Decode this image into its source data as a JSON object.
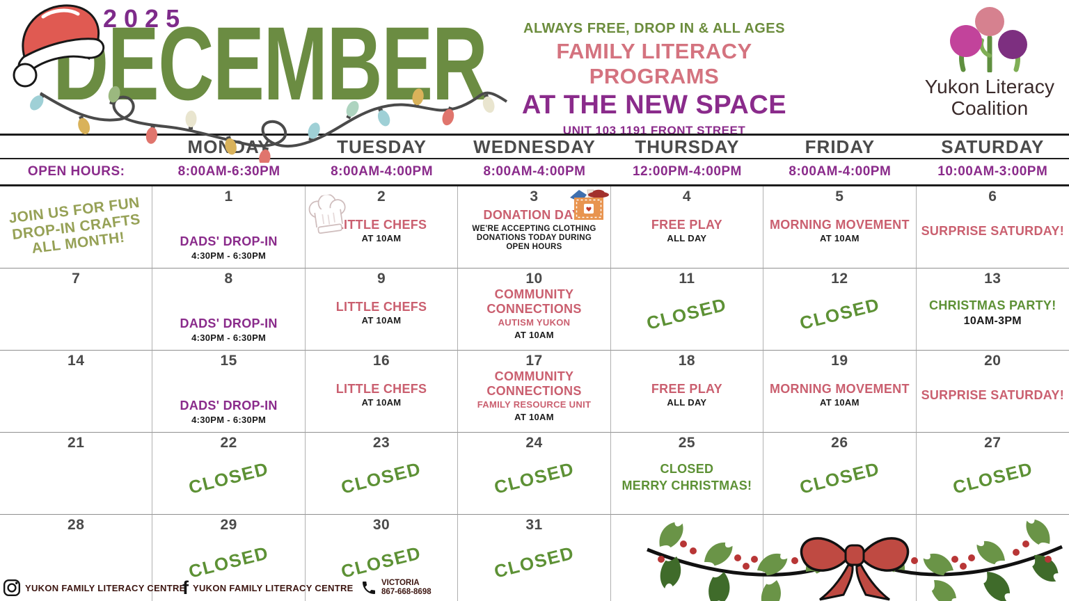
{
  "header": {
    "year": "2025",
    "month": "DECEMBER",
    "tagline": "ALWAYS FREE, DROP IN & ALL AGES",
    "program_title": "FAMILY LITERACY PROGRAMS",
    "venue": "AT THE NEW SPACE",
    "address": "UNIT 103 1191 FRONT STREET",
    "logo": {
      "line1": "Yukon Literacy",
      "line2": "Coalition"
    }
  },
  "calendar": {
    "day_headers": [
      "MONDAY",
      "TUESDAY",
      "WEDNESDAY",
      "THURSDAY",
      "FRIDAY",
      "SATURDAY"
    ],
    "open_hours_label": "OPEN HOURS:",
    "open_hours": [
      "8:00AM-6:30PM",
      "8:00AM-4:00PM",
      "8:00AM-4:00PM",
      "12:00PM-4:00PM",
      "8:00AM-4:00PM",
      "10:00AM-3:00PM"
    ],
    "closed_label": "CLOSED",
    "note_lines": [
      "JOIN US FOR FUN",
      "DROP-IN CRAFTS",
      "ALL MONTH!"
    ],
    "weeks": [
      [
        {
          "special": "note"
        },
        {
          "date": "1",
          "valign": "bottom",
          "events": [
            {
              "text": "DADS' DROP-IN",
              "color": "purple",
              "size": "lg"
            },
            {
              "text": "4:30PM - 6:30PM",
              "color": "black",
              "size": "sm"
            }
          ]
        },
        {
          "date": "2",
          "icon": "chef-hat-icon",
          "events": [
            {
              "text": "LITTLE CHEFS",
              "color": "pink",
              "size": "lg"
            },
            {
              "text": "AT 10AM",
              "color": "black",
              "size": "sm"
            }
          ]
        },
        {
          "date": "3",
          "icon": "donation-box-icon",
          "valign": "top",
          "events": [
            {
              "text": "DONATION DAY!",
              "color": "pink",
              "size": "lg"
            },
            {
              "text": "WE'RE ACCEPTING CLOTHING DONATIONS TODAY DURING OPEN HOURS",
              "color": "black",
              "size": "xs"
            }
          ]
        },
        {
          "date": "4",
          "events": [
            {
              "text": "FREE PLAY",
              "color": "pink",
              "size": "lg"
            },
            {
              "text": "ALL DAY",
              "color": "black",
              "size": "sm"
            }
          ]
        },
        {
          "date": "5",
          "events": [
            {
              "text": "MORNING MOVEMENT",
              "color": "pink",
              "size": "lg"
            },
            {
              "text": "AT 10AM",
              "color": "black",
              "size": "sm"
            }
          ]
        },
        {
          "date": "6",
          "events": [
            {
              "text": "SURPRISE SATURDAY!",
              "color": "pink",
              "size": "lg"
            }
          ]
        }
      ],
      [
        {
          "date": "7"
        },
        {
          "date": "8",
          "valign": "bottom",
          "events": [
            {
              "text": "DADS' DROP-IN",
              "color": "purple",
              "size": "lg"
            },
            {
              "text": "4:30PM - 6:30PM",
              "color": "black",
              "size": "sm"
            }
          ]
        },
        {
          "date": "9",
          "events": [
            {
              "text": "LITTLE CHEFS",
              "color": "pink",
              "size": "lg"
            },
            {
              "text": "AT 10AM",
              "color": "black",
              "size": "sm"
            }
          ]
        },
        {
          "date": "10",
          "events": [
            {
              "text": "COMMUNITY CONNECTIONS",
              "color": "pink",
              "size": "lg"
            },
            {
              "text": "AUTISM YUKON",
              "color": "pink",
              "size": "sm"
            },
            {
              "text": "AT 10AM",
              "color": "black",
              "size": "sm"
            }
          ]
        },
        {
          "date": "11",
          "closed": true
        },
        {
          "date": "12",
          "closed": true
        },
        {
          "date": "13",
          "events": [
            {
              "text": "CHRISTMAS PARTY!",
              "color": "green",
              "size": "lg"
            },
            {
              "text": "10AM-3PM",
              "color": "black",
              "size": "md"
            }
          ]
        }
      ],
      [
        {
          "date": "14"
        },
        {
          "date": "15",
          "valign": "bottom",
          "events": [
            {
              "text": "DADS' DROP-IN",
              "color": "purple",
              "size": "lg"
            },
            {
              "text": "4:30PM - 6:30PM",
              "color": "black",
              "size": "sm"
            }
          ]
        },
        {
          "date": "16",
          "events": [
            {
              "text": "LITTLE CHEFS",
              "color": "pink",
              "size": "lg"
            },
            {
              "text": "AT 10AM",
              "color": "black",
              "size": "sm"
            }
          ]
        },
        {
          "date": "17",
          "events": [
            {
              "text": "COMMUNITY CONNECTIONS",
              "color": "pink",
              "size": "lg"
            },
            {
              "text": "FAMILY RESOURCE UNIT",
              "color": "pink",
              "size": "sm"
            },
            {
              "text": "AT 10AM",
              "color": "black",
              "size": "sm"
            }
          ]
        },
        {
          "date": "18",
          "events": [
            {
              "text": "FREE PLAY",
              "color": "pink",
              "size": "lg"
            },
            {
              "text": "ALL DAY",
              "color": "black",
              "size": "sm"
            }
          ]
        },
        {
          "date": "19",
          "events": [
            {
              "text": "MORNING MOVEMENT",
              "color": "pink",
              "size": "lg"
            },
            {
              "text": "AT 10AM",
              "color": "black",
              "size": "sm"
            }
          ]
        },
        {
          "date": "20",
          "events": [
            {
              "text": "SURPRISE SATURDAY!",
              "color": "pink",
              "size": "lg"
            }
          ]
        }
      ],
      [
        {
          "date": "21"
        },
        {
          "date": "22",
          "closed": true
        },
        {
          "date": "23",
          "closed": true
        },
        {
          "date": "24",
          "closed": true
        },
        {
          "date": "25",
          "events": [
            {
              "text": "CLOSED",
              "color": "green",
              "size": "lg"
            },
            {
              "text": "MERRY CHRISTMAS!",
              "color": "green",
              "size": "lg"
            }
          ]
        },
        {
          "date": "26",
          "closed": true
        },
        {
          "date": "27",
          "closed": true
        }
      ],
      [
        {
          "date": "28"
        },
        {
          "date": "29",
          "closed": true
        },
        {
          "date": "30",
          "closed": true
        },
        {
          "date": "31",
          "closed": true
        },
        {},
        {},
        {}
      ]
    ]
  },
  "footer": {
    "instagram": "YUKON FAMILY LITERACY CENTRE",
    "facebook": "YUKON FAMILY LITERACY CENTRE",
    "phone_name": "VICTORIA",
    "phone_number": "867-668-8698"
  },
  "colors": {
    "title_green": "#6b8c42",
    "purple": "#8a2b8b",
    "header_pink": "#d4737f",
    "event_pink": "#ca5f6f",
    "closed_green": "#5d9135",
    "note_olive": "#96a156",
    "day_gray": "#4a4a4a",
    "footer_maroon": "#3c1510"
  }
}
